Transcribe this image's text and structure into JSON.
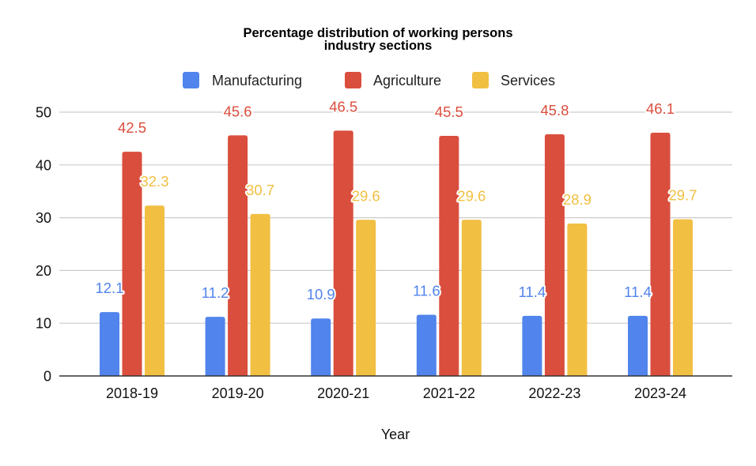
{
  "chart_data": {
    "type": "bar",
    "title": [
      "Percentage distribution of working persons",
      "industry sections"
    ],
    "xlabel": "Year",
    "ylabel": "",
    "ylim": [
      0,
      50
    ],
    "yticks": [
      "0",
      "10",
      "20",
      "30",
      "40",
      "50"
    ],
    "ytick_values": [
      0,
      10,
      20,
      30,
      40,
      50
    ],
    "grid": true,
    "legend_position": "top",
    "categories": [
      "2018-19",
      "2019-20",
      "2020-21",
      "2021-22",
      "2022-23",
      "2023-24"
    ],
    "series": [
      {
        "name": "Manufacturing",
        "color": "#5184EC",
        "values": [
          12.1,
          11.2,
          10.9,
          11.6,
          11.4,
          11.4
        ],
        "labels": [
          "12.1",
          "11.2",
          "10.9",
          "11.6",
          "11.4",
          "11.4"
        ]
      },
      {
        "name": "Agriculture",
        "color": "#DA4E3D",
        "values": [
          42.5,
          45.6,
          46.5,
          45.5,
          45.8,
          46.1
        ],
        "labels": [
          "42.5",
          "45.6",
          "46.5",
          "45.5",
          "45.8",
          "46.1"
        ]
      },
      {
        "name": "Services",
        "color": "#F1BF42",
        "values": [
          32.3,
          30.7,
          29.6,
          29.6,
          28.9,
          29.7
        ],
        "labels": [
          "32.3",
          "30.7",
          "29.6",
          "29.6",
          "28.9",
          "29.7"
        ]
      }
    ]
  }
}
